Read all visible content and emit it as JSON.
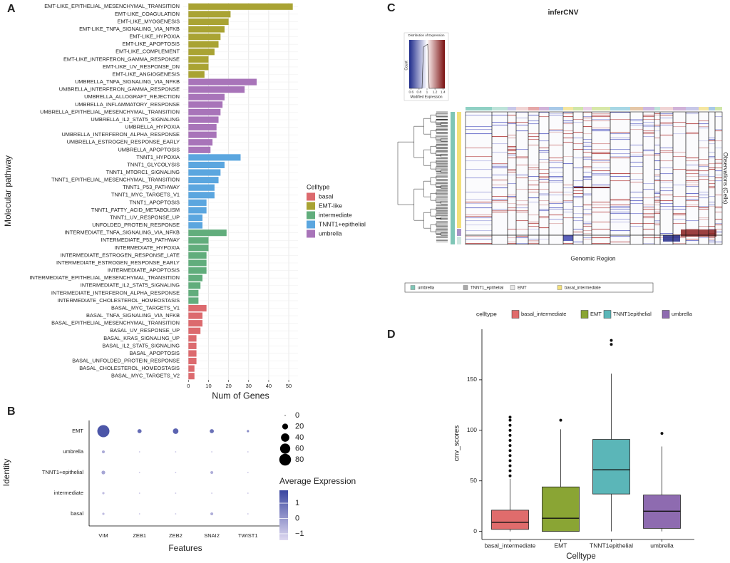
{
  "chart_data": [
    {
      "panel": "A",
      "type": "bar",
      "orientation": "horizontal",
      "categories": [
        "EMT-LIKE_EPITHELIAL_MESENCHYMAL_TRANSITION",
        "EMT-LIKE_COAGULATION",
        "EMT-LIKE_MYOGENESIS",
        "EMT-LIKE_TNFA_SIGNALING_VIA_NFKB",
        "EMT-LIKE_HYPOXIA",
        "EMT-LIKE_APOPTOSIS",
        "EMT-LIKE_COMPLEMENT",
        "EMT-LIKE_INTERFERON_GAMMA_RESPONSE",
        "EMT-LIKE_UV_RESPONSE_DN",
        "EMT-LIKE_ANGIOGENESIS",
        "UMBRELLA_TNFA_SIGNALING_VIA_NFKB",
        "UMBRELLA_INTERFERON_GAMMA_RESPONSE",
        "UMBRELLA_ALLOGRAFT_REJECTION",
        "UMBRELLA_INFLAMMATORY_RESPONSE",
        "UMBRELLA_EPITHELIAL_MESENCHYMAL_TRANSITION",
        "UMBRELLA_IL2_STAT5_SIGNALING",
        "UMBRELLA_HYPOXIA",
        "UMBRELLA_INTERFERON_ALPHA_RESPONSE",
        "UMBRELLA_ESTROGEN_RESPONSE_EARLY",
        "UMBRELLA_APOPTOSIS",
        "TNNT1_HYPOXIA",
        "TNNT1_GLYCOLYSIS",
        "TNNT1_MTORC1_SIGNALING",
        "TNNT1_EPITHELIAL_MESENCHYMAL_TRANSITION",
        "TNNT1_P53_PATHWAY",
        "TNNT1_MYC_TARGETS_V1",
        "TNNT1_APOPTOSIS",
        "TNNT1_FATTY_ACID_METABOLISM",
        "TNNT1_UV_RESPONSE_UP",
        "UNFOLDED_PROTEIN_RESPONSE",
        "INTERMEDIATE_TNFA_SIGNALING_VIA_NFKB",
        "INTERMEDIATE_P53_PATHWAY",
        "INTERMEDIATE_HYPOXIA",
        "INTERMEDIATE_ESTROGEN_RESPONSE_LATE",
        "INTERMEDIATE_ESTROGEN_RESPONSE_EARLY",
        "INTERMEDIATE_APOPTOSIS",
        "INTERMEDIATE_EPITHELIAL_MESENCHYMAL_TRANSITION",
        "INTERMEDIATE_IL2_STAT5_SIGNALING",
        "INTERMEDIATE_INTERFERON_ALPHA_RESPONSE",
        "INTERMEDIATE_CHOLESTEROL_HOMEOSTASIS",
        "BASAL_MYC_TARGETS_V1",
        "BASAL_TNFA_SIGNALING_VIA_NFKB",
        "BASAL_EPITHELIAL_MESENCHYMAL_TRANSITION",
        "BASAL_UV_RESPONSE_UP",
        "BASAL_KRAS_SIGNALING_UP",
        "BASAL_IL2_STAT5_SIGNALING",
        "BASAL_APOPTOSIS",
        "BASAL_UNFOLDED_PROTEIN_RESPONSE",
        "BASAL_CHOLESTEROL_HOMEOSTASIS",
        "BASAL_MYC_TARGETS_V2"
      ],
      "series": [
        {
          "name": "basal",
          "color": "#dc6a6e",
          "values": [
            null,
            null,
            null,
            null,
            null,
            null,
            null,
            null,
            null,
            null,
            null,
            null,
            null,
            null,
            null,
            null,
            null,
            null,
            null,
            null,
            null,
            null,
            null,
            null,
            null,
            null,
            null,
            null,
            null,
            null,
            null,
            null,
            null,
            null,
            null,
            null,
            null,
            null,
            null,
            null,
            9,
            7,
            7,
            6,
            4,
            4,
            4,
            4,
            3,
            3
          ]
        },
        {
          "name": "EMT-like",
          "color": "#a9a333",
          "values": [
            52,
            21,
            20,
            18,
            16,
            15,
            13,
            10,
            10,
            8,
            null,
            null,
            null,
            null,
            null,
            null,
            null,
            null,
            null,
            null,
            null,
            null,
            null,
            null,
            null,
            null,
            null,
            null,
            null,
            null,
            null,
            null,
            null,
            null,
            null,
            null,
            null,
            null,
            null,
            null,
            null,
            null,
            null,
            null,
            null,
            null,
            null,
            null,
            null,
            null
          ]
        },
        {
          "name": "intermediate",
          "color": "#61ad7c",
          "values": [
            null,
            null,
            null,
            null,
            null,
            null,
            null,
            null,
            null,
            null,
            null,
            null,
            null,
            null,
            null,
            null,
            null,
            null,
            null,
            null,
            null,
            null,
            null,
            null,
            null,
            null,
            null,
            null,
            null,
            null,
            19,
            10,
            10,
            9,
            9,
            9,
            7,
            6,
            5,
            5,
            null,
            null,
            null,
            null,
            null,
            null,
            null,
            null,
            null,
            null
          ]
        },
        {
          "name": "TNNT1+epithelial",
          "color": "#5ba6df",
          "values": [
            null,
            null,
            null,
            null,
            null,
            null,
            null,
            null,
            null,
            null,
            null,
            null,
            null,
            null,
            null,
            null,
            null,
            null,
            null,
            null,
            26,
            18,
            16,
            15,
            13,
            13,
            9,
            9,
            7,
            7,
            null,
            null,
            null,
            null,
            null,
            null,
            null,
            null,
            null,
            null,
            null,
            null,
            null,
            null,
            null,
            null,
            null,
            null,
            null,
            null
          ]
        },
        {
          "name": "umbrella",
          "color": "#a874b9",
          "values": [
            null,
            null,
            null,
            null,
            null,
            null,
            null,
            null,
            null,
            null,
            34,
            28,
            18,
            17,
            16,
            15,
            14,
            14,
            12,
            11,
            null,
            null,
            null,
            null,
            null,
            null,
            null,
            null,
            null,
            null,
            null,
            null,
            null,
            null,
            null,
            null,
            null,
            null,
            null,
            null,
            null,
            null,
            null,
            null,
            null,
            null,
            null,
            null,
            null,
            null
          ]
        }
      ],
      "xlim": [
        -2.6,
        54.6
      ],
      "xticks": [
        0,
        10,
        20,
        30,
        40,
        50
      ],
      "grid": true,
      "xlabel": "Num of Genes",
      "ylabel": "Molecular pathway",
      "legend_title": "Celltype"
    },
    {
      "panel": "B",
      "type": "dot",
      "features": [
        "VIM",
        "ZEB1",
        "ZEB2",
        "SNAI2",
        "TWIST1"
      ],
      "identities": [
        "EMT",
        "umbrella",
        "TNNT1+epithelial",
        "intermediate",
        "basal"
      ],
      "percent": [
        [
          85,
          10,
          18,
          10,
          3
        ],
        [
          5,
          1,
          1,
          1,
          1
        ],
        [
          8,
          1,
          1,
          5,
          1
        ],
        [
          3,
          1,
          1,
          1,
          1
        ],
        [
          3,
          1,
          1,
          5,
          1
        ]
      ],
      "expression": [
        [
          1.5,
          1.0,
          1.2,
          0.9,
          0.3
        ],
        [
          -0.4,
          -1,
          -1,
          -1,
          -1
        ],
        [
          -0.3,
          -1,
          -1,
          -0.5,
          -1
        ],
        [
          -0.8,
          -1,
          -1,
          -1,
          -1
        ],
        [
          -0.8,
          -1,
          -1,
          -0.5,
          -1
        ]
      ],
      "xlabel": "Features",
      "ylabel": "Identity",
      "size_ticks": [
        0,
        20,
        40,
        60,
        80
      ],
      "size_lim": [
        0,
        85
      ],
      "color_title": "Average Expression",
      "color_ticks": [
        1,
        0,
        {
          "value": -1,
          "label": "−1"
        }
      ],
      "clim": [
        -1.42,
        1.84
      ],
      "color_low": "#ded8f0",
      "color_high": "#3b47a0"
    },
    {
      "panel": "C",
      "type": "heatmap",
      "title": "inferCNV",
      "key_title": "Distribution of Expression",
      "key_ylabel": "Count",
      "key_xlabel": "Modified Expression",
      "key_ticks": [
        0.6,
        0.8,
        1,
        1.2,
        1.4
      ],
      "key_lim": [
        0.55,
        1.45
      ],
      "xlabel": "Genomic Region",
      "ylabel": "Observations (Cells)",
      "legend": [
        {
          "name": "umbrella",
          "color": "#7fc6b6"
        },
        {
          "name": "TNNT1_epithelial",
          "color": "#a9a9a9"
        },
        {
          "name": "EMT",
          "color": "#e6e6e6"
        },
        {
          "name": "basal_intermediate",
          "color": "#f3e07a"
        }
      ]
    },
    {
      "panel": "D",
      "type": "box",
      "categories": [
        "basal_intermediate",
        "EMT",
        "TNNT1epithelial",
        "umbrella"
      ],
      "colors": [
        "#e06c6c",
        "#8aa534",
        "#5bb6b8",
        "#8e6bb0"
      ],
      "stats": [
        {
          "min": 0,
          "q1": 2,
          "median": 9,
          "q3": 21,
          "max": 52,
          "outliers": [
            55,
            60,
            65,
            70,
            75,
            80,
            85,
            90,
            95,
            100,
            105,
            110,
            113
          ]
        },
        {
          "min": 0,
          "q1": 0,
          "median": 13,
          "q3": 44,
          "max": 101,
          "outliers": [
            110
          ]
        },
        {
          "min": 0,
          "q1": 37,
          "median": 61,
          "q3": 91,
          "max": 156,
          "outliers": [
            185,
            189
          ]
        },
        {
          "min": 0,
          "q1": 3,
          "median": 20,
          "q3": 36,
          "max": 84,
          "outliers": [
            97
          ]
        }
      ],
      "ylim": [
        -8,
        200
      ],
      "yticks": [
        0,
        50,
        100,
        150
      ],
      "xlabel": "Celltype",
      "ylabel": "cnv_scores",
      "legend_title": "celltype"
    }
  ]
}
